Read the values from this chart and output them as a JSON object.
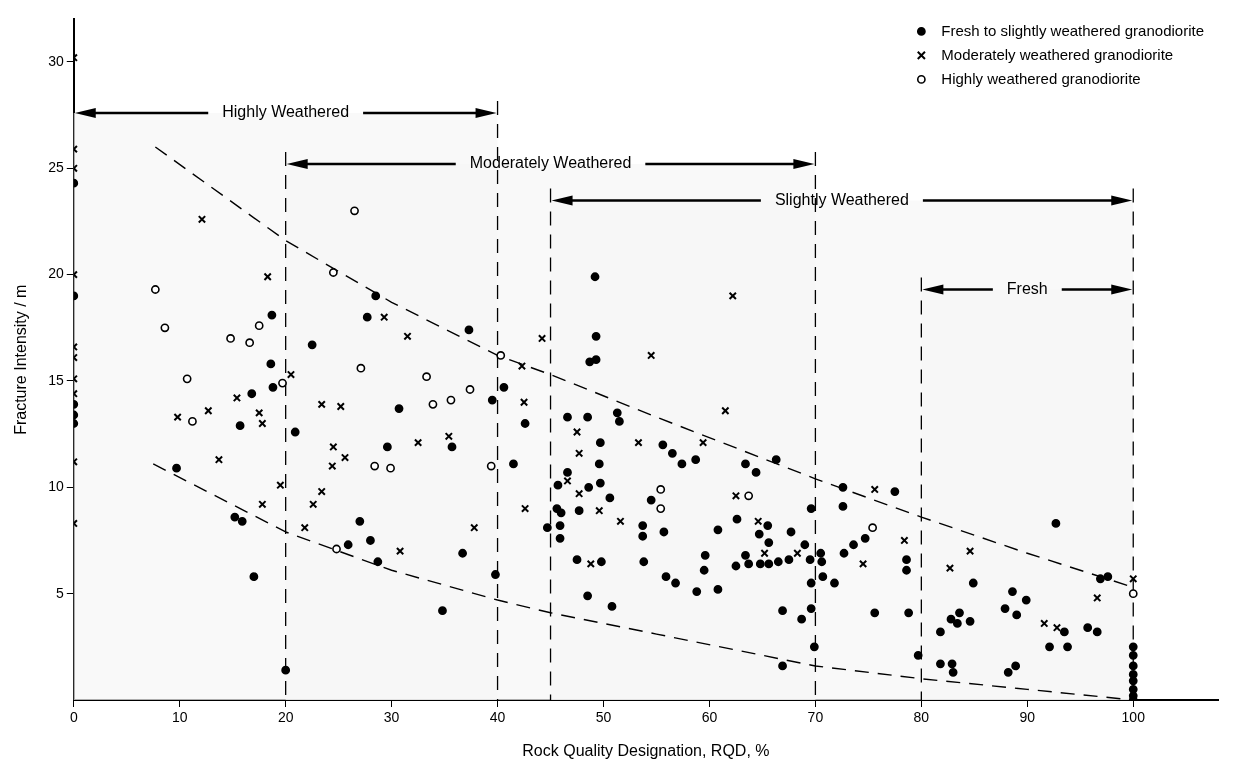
{
  "chart_data": {
    "type": "scatter",
    "xlabel": "Rock Quality Designation, RQD, %",
    "ylabel": "Fracture Intensity / m",
    "xlim": [
      0,
      108
    ],
    "xticks": [
      0,
      10,
      20,
      30,
      40,
      50,
      60,
      70,
      80,
      90,
      100
    ],
    "ylim": [
      0,
      32
    ],
    "yticks": [
      5,
      10,
      15,
      20,
      25,
      30
    ],
    "grid": false,
    "legend": "top right",
    "bands": [
      {
        "axis": "x",
        "from": 0,
        "to": 40,
        "label": "Highly Weathered",
        "color": "#f6f6f6"
      },
      {
        "axis": "x",
        "from": 20,
        "to": 70,
        "label": "Moderately Weathered",
        "color": "#f6f6f6"
      },
      {
        "axis": "x",
        "from": 45,
        "to": 100,
        "label": "Slightly Weathered",
        "color": "#f6f6f6"
      },
      {
        "axis": "x",
        "from": 80,
        "to": 100,
        "label": "Fresh",
        "color": "#f6f6f6"
      }
    ],
    "ref_lines": [
      {
        "axis": "x",
        "value": 20,
        "color": "#000000",
        "line_style": "dashed"
      },
      {
        "axis": "x",
        "value": 40,
        "color": "#000000",
        "line_style": "dashed"
      },
      {
        "axis": "x",
        "value": 45,
        "color": "#000000",
        "line_style": "dashed"
      },
      {
        "axis": "x",
        "value": 70,
        "color": "#000000",
        "line_style": "dashed"
      },
      {
        "axis": "x",
        "value": 80,
        "color": "#000000",
        "line_style": "dashed"
      },
      {
        "axis": "x",
        "value": 100,
        "color": "#000000",
        "line_style": "dashed"
      }
    ],
    "series": [
      {
        "name": "Fresh to slightly weathered granodiorite",
        "color": "#000000",
        "marker": "circle",
        "x": [
          0,
          0,
          0,
          0,
          0,
          28.5,
          27.7,
          18.7,
          22.5,
          18.6,
          16.8,
          18.8,
          15.7,
          20.9,
          30.7,
          29.6,
          9.7,
          15.2,
          15.9,
          27.0,
          28.0,
          25.9,
          28.7,
          17.0,
          34.8,
          20.0,
          49.2,
          49.3,
          48.7,
          49.3,
          37.3,
          40.6,
          39.5,
          42.6,
          46.6,
          48.5,
          51.3,
          51.5,
          35.7,
          41.5,
          49.7,
          49.6,
          49.7,
          48.6,
          46.6,
          45.7,
          50.6,
          55.6,
          56.5,
          57.4,
          58.7,
          54.5,
          45.6,
          46.0,
          47.7,
          45.9,
          45.9,
          44.7,
          53.7,
          53.7,
          55.7,
          60.8,
          36.7,
          47.5,
          49.8,
          53.8,
          59.6,
          59.5,
          55.9,
          56.8,
          58.8,
          60.8,
          39.8,
          48.5,
          50.8,
          66.3,
          63.4,
          64.4,
          69.6,
          72.6,
          72.6,
          77.5,
          62.6,
          65.5,
          64.7,
          65.6,
          67.7,
          69.0,
          62.5,
          63.7,
          64.8,
          65.6,
          66.5,
          67.5,
          63.4,
          69.5,
          70.5,
          70.6,
          70.7,
          71.8,
          72.7,
          73.6,
          74.7,
          78.6,
          78.6,
          69.6,
          69.6,
          66.9,
          68.7,
          75.6,
          78.8,
          82.8,
          83.6,
          83.4,
          81.8,
          69.9,
          79.7,
          66.9,
          81.8,
          82.9,
          83.0,
          92.7,
          96.9,
          97.6,
          84.9,
          88.6,
          89.9,
          87.9,
          89.0,
          84.6,
          93.5,
          95.7,
          96.6,
          92.1,
          93.8,
          88.2,
          88.9,
          100,
          100,
          100,
          100,
          100,
          100,
          100,
          100
        ],
        "values": [
          24.3,
          19.0,
          13.9,
          13.4,
          13.0,
          19.0,
          18.0,
          18.1,
          16.7,
          15.8,
          14.4,
          14.7,
          12.9,
          12.6,
          13.7,
          11.9,
          10.9,
          8.6,
          8.4,
          8.4,
          7.5,
          7.3,
          6.5,
          5.8,
          4.2,
          1.4,
          19.9,
          17.1,
          15.9,
          16.0,
          17.4,
          14.7,
          14.1,
          13.0,
          13.3,
          13.3,
          13.5,
          13.1,
          11.9,
          11.1,
          12.1,
          11.1,
          10.2,
          10.0,
          10.7,
          10.1,
          9.5,
          12.0,
          11.6,
          11.1,
          11.3,
          9.4,
          9.0,
          8.8,
          8.9,
          8.2,
          7.6,
          8.1,
          8.2,
          7.7,
          7.9,
          8.0,
          6.9,
          6.6,
          6.5,
          6.5,
          6.8,
          6.1,
          5.8,
          5.5,
          5.1,
          5.2,
          5.9,
          4.9,
          4.4,
          11.3,
          11.1,
          10.7,
          9.0,
          10.0,
          9.1,
          9.8,
          8.5,
          8.2,
          7.8,
          7.4,
          7.9,
          7.3,
          6.3,
          6.4,
          6.4,
          6.4,
          6.5,
          6.6,
          6.8,
          6.6,
          6.9,
          6.5,
          5.8,
          5.5,
          6.9,
          7.3,
          7.6,
          6.6,
          6.1,
          5.5,
          4.3,
          4.2,
          3.8,
          4.1,
          4.1,
          3.8,
          4.1,
          3.6,
          3.2,
          2.5,
          2.1,
          1.6,
          1.7,
          1.7,
          1.3,
          8.3,
          5.7,
          5.8,
          5.5,
          5.1,
          4.7,
          4.3,
          4.0,
          3.7,
          3.2,
          3.4,
          3.2,
          2.5,
          2.5,
          1.3,
          1.6,
          2.5,
          2.1,
          1.6,
          1.2,
          0.9,
          0.5,
          0.2,
          0
        ]
      },
      {
        "name": "Moderately weathered granodiorite",
        "color": "#000000",
        "marker": "cross",
        "x": [
          0,
          0,
          0,
          0,
          0,
          0,
          0,
          0,
          0,
          0,
          12.1,
          18.3,
          29.3,
          31.5,
          20.5,
          15.4,
          9.8,
          12.7,
          17.5,
          17.8,
          23.4,
          25.2,
          13.7,
          24.5,
          25.6,
          24.4,
          32.5,
          23.4,
          22.6,
          17.8,
          21.8,
          30.8,
          19.5,
          44.2,
          42.3,
          42.5,
          35.4,
          47.5,
          47.7,
          46.6,
          47.7,
          42.6,
          49.6,
          51.6,
          37.8,
          48.8,
          54.5,
          53.3,
          59.4,
          61.5,
          62.5,
          64.6,
          65.2,
          68.3,
          75.6,
          74.5,
          78.4,
          82.7,
          62.2,
          84.6,
          96.6,
          91.6,
          92.8,
          100
        ],
        "values": [
          30.2,
          25.9,
          25.0,
          20.0,
          16.6,
          16.1,
          15.1,
          14.4,
          11.2,
          8.3,
          22.6,
          19.9,
          18.0,
          17.1,
          15.3,
          14.2,
          13.3,
          13.6,
          13.5,
          13.0,
          13.9,
          13.8,
          11.3,
          11.9,
          11.4,
          11.0,
          12.1,
          9.8,
          9.2,
          9.2,
          8.1,
          7.0,
          10.1,
          17.0,
          15.7,
          14.0,
          12.4,
          12.6,
          11.6,
          10.3,
          9.7,
          9.0,
          8.9,
          8.4,
          8.1,
          6.4,
          16.2,
          12.1,
          12.1,
          13.6,
          9.6,
          8.4,
          6.9,
          6.9,
          9.9,
          6.4,
          7.5,
          6.2,
          19.0,
          7.0,
          4.8,
          3.6,
          3.4,
          5.7
        ]
      },
      {
        "name": "Highly weathered granodiorite",
        "color": "#000000",
        "marker": "open circle",
        "x": [
          26.5,
          24.5,
          7.7,
          8.6,
          17.5,
          14.8,
          16.6,
          10.7,
          27.1,
          33.3,
          33.9,
          11.2,
          19.7,
          28.4,
          29.9,
          24.8,
          40.3,
          37.4,
          35.6,
          39.4,
          55.4,
          55.4,
          63.7,
          75.4,
          100
        ],
        "values": [
          23.0,
          20.1,
          19.3,
          17.5,
          17.6,
          17.0,
          16.8,
          15.1,
          15.6,
          15.2,
          13.9,
          13.1,
          14.9,
          11.0,
          10.9,
          7.1,
          16.2,
          14.6,
          14.1,
          11.0,
          9.9,
          9.0,
          9.6,
          8.1,
          5.0
        ]
      },
      {
        "type": "line",
        "color": "#000000",
        "line_style": "dashed",
        "x": [
          7.7,
          20,
          30,
          40,
          45,
          55,
          70,
          80,
          90,
          100
        ],
        "values": [
          26.0,
          21.6,
          18.7,
          16.2,
          15.3,
          13.3,
          10.4,
          8.6,
          6.9,
          5.3
        ]
      },
      {
        "type": "line",
        "color": "#000000",
        "line_style": "dashed",
        "x": [
          7.5,
          20,
          30,
          40,
          45,
          55,
          70,
          80,
          90,
          100
        ],
        "values": [
          11.1,
          7.9,
          6.1,
          4.7,
          4.1,
          3.1,
          1.6,
          1.0,
          0.5,
          0
        ]
      }
    ]
  }
}
